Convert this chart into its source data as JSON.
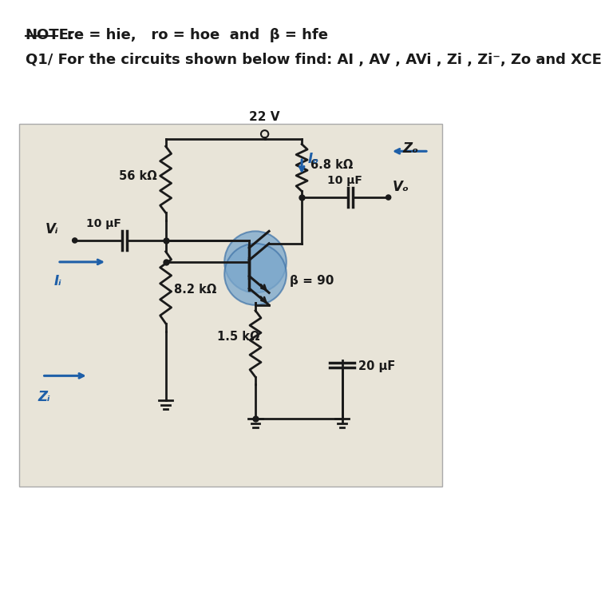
{
  "bg_color": "#e8e4d8",
  "note_text": "NOTE:",
  "note_detail": "re = hie,   ro = hoe  and  β = hfe",
  "q1_text": "Q1/ For the circuits shown below find: AI , AV , AVi , Zi , Zi⁻, Zo and XCE",
  "supply_voltage": "22 V",
  "r1_label": "56 kΩ",
  "r2_label": "6.8 kΩ",
  "r3_label": "8.2 kΩ",
  "r4_label": "1.5 kΩ",
  "c1_label": "10 μF",
  "c2_label": "10 μF",
  "c3_label": "20 μF",
  "beta_label": "β = 90",
  "vi_label": "Vᵢ",
  "vo_label": "Vₒ",
  "ii_label": "Iᵢ",
  "io_label": "Iₒ",
  "zi_label": "Zᵢ",
  "zo_label": "Zₒ",
  "line_color": "#1a1a1a",
  "arrow_color": "#1e5fa8",
  "resistor_color": "#1a1a1a",
  "transistor_circle_color": "#7aa7cc",
  "text_color": "#1a1a1a"
}
